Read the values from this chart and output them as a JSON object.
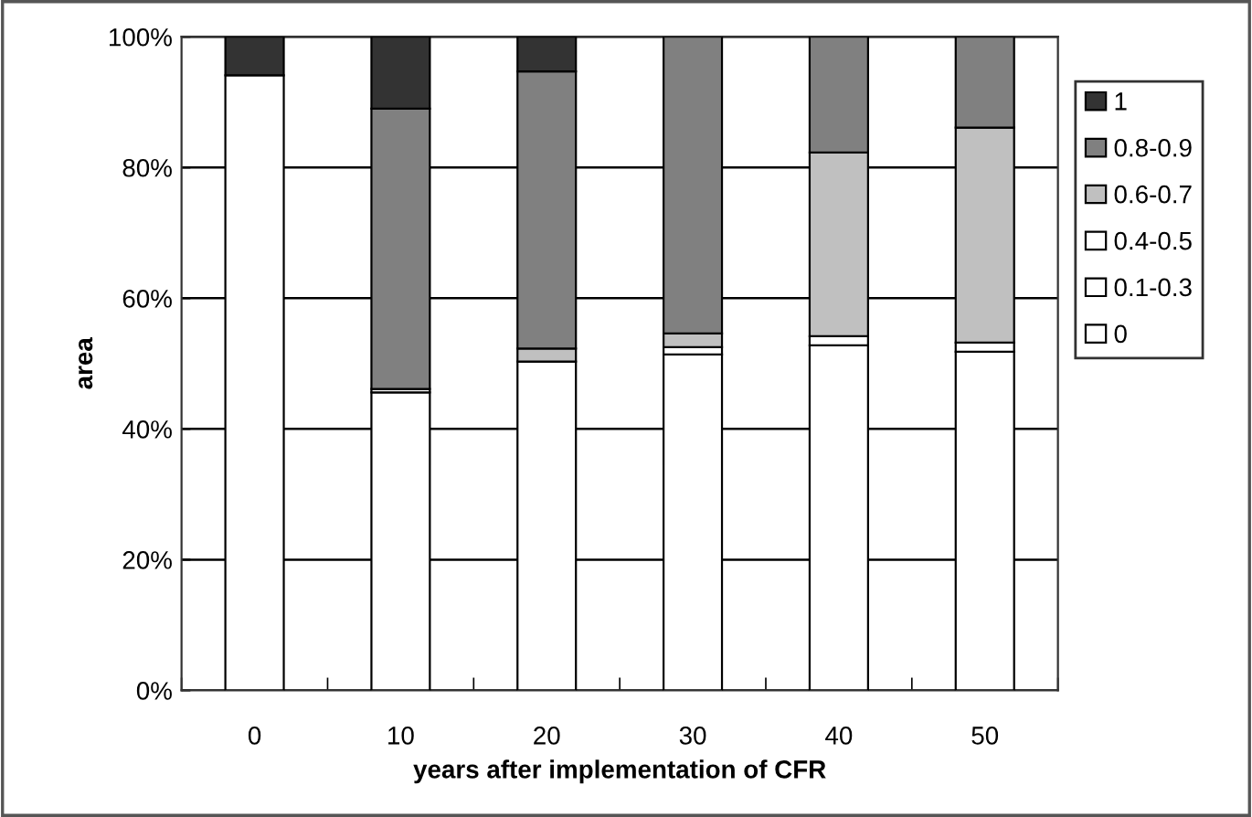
{
  "chart_data": {
    "type": "bar",
    "stacked": true,
    "xlabel": "years after implementation of CFR",
    "ylabel": "area",
    "categories": [
      "0",
      "10",
      "20",
      "30",
      "40",
      "50"
    ],
    "series": [
      {
        "name": "0",
        "color": "#ffffff",
        "values": [
          94.1,
          45.6,
          50.3,
          51.4,
          52.8,
          51.8
        ]
      },
      {
        "name": "0.1-0.3",
        "color": "#ffffff",
        "values": [
          0,
          0.5,
          0,
          0,
          0,
          0
        ]
      },
      {
        "name": "0.4-0.5",
        "color": "#ffffff",
        "values": [
          0,
          0,
          0,
          1.1,
          1.4,
          1.4
        ]
      },
      {
        "name": "0.6-0.7",
        "color": "#c0c0c0",
        "values": [
          0,
          0,
          2.0,
          2.1,
          28.1,
          32.9
        ]
      },
      {
        "name": "0.8-0.9",
        "color": "#808080",
        "values": [
          0,
          42.9,
          42.4,
          45.4,
          17.7,
          13.9
        ]
      },
      {
        "name": "1",
        "color": "#333333",
        "values": [
          5.9,
          11.0,
          5.3,
          0,
          0,
          0
        ]
      }
    ],
    "ylim": [
      0,
      100
    ],
    "yticks": [
      {
        "value": 0,
        "label": "0%"
      },
      {
        "value": 20,
        "label": "20%"
      },
      {
        "value": 40,
        "label": "40%"
      },
      {
        "value": 60,
        "label": "60%"
      },
      {
        "value": 80,
        "label": "80%"
      },
      {
        "value": 100,
        "label": "100%"
      }
    ],
    "grid": "y",
    "legend": "right"
  }
}
